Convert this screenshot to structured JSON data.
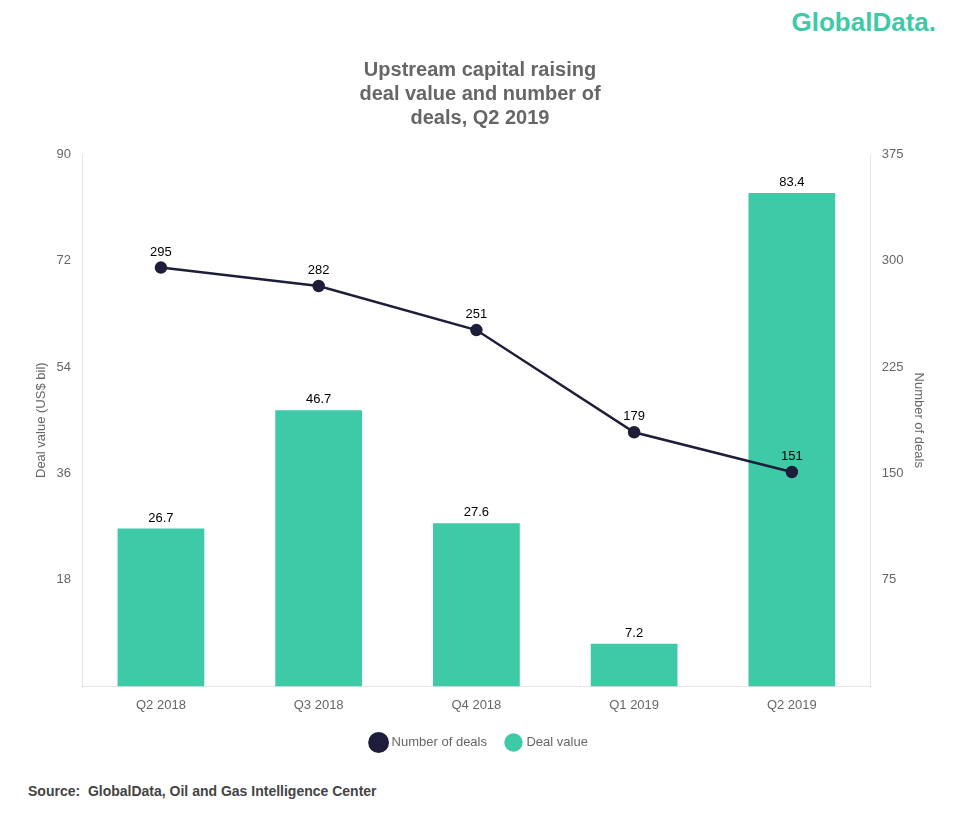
{
  "chart_data": {
    "type": "bar",
    "title": "Upstream capital raising\ndeal value and number of\ndeals, Q2 2019",
    "categories": [
      "Q2 2018",
      "Q3 2018",
      "Q4 2018",
      "Q1 2019",
      "Q2 2019"
    ],
    "series": [
      {
        "name": "Deal value",
        "type": "bar",
        "color": "#3ec9a7",
        "values": [
          26.7,
          46.7,
          27.6,
          7.2,
          83.4
        ]
      },
      {
        "name": "Number of deals",
        "type": "line",
        "color": "#1e1e3a",
        "marker": "circle",
        "axis": "y2",
        "values": [
          295,
          282,
          251,
          179,
          151
        ]
      }
    ],
    "ylabel": "Deal value (US$ bil)",
    "y2label": "Number of deals",
    "ylim": [
      0,
      90
    ],
    "yticks": [
      18,
      36,
      54,
      72,
      90
    ],
    "y2lim": [
      0,
      375
    ],
    "y2ticks": [
      75,
      150,
      225,
      300,
      375
    ],
    "grid": false,
    "legend": "bottom",
    "data_labels": true,
    "annotations": [
      "GlobalData.",
      "Source:  GlobalData, Oil and Gas Intelligence Center"
    ]
  }
}
